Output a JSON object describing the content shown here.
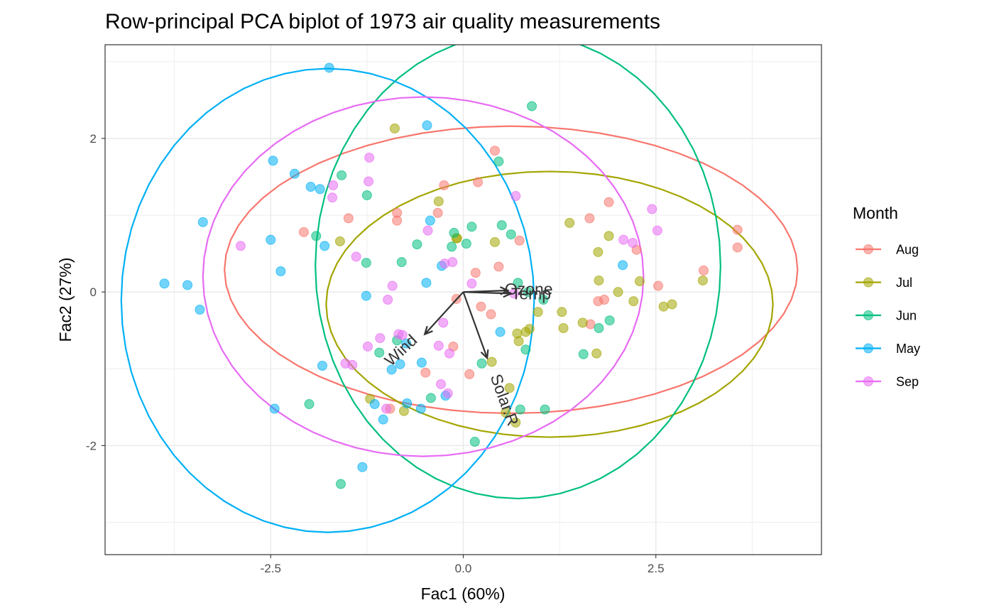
{
  "chart_data": {
    "type": "scatter",
    "title": "Row-principal PCA biplot of 1973 air quality measurements",
    "xlabel": "Fac1 (60%)",
    "ylabel": "Fac2 (27%)",
    "xlim": [
      -4.65,
      4.65
    ],
    "ylim": [
      -3.42,
      3.22
    ],
    "x_ticks": [
      -2.5,
      0,
      2.5
    ],
    "x_tick_labels": [
      "-2.5",
      "0.0",
      "2.5"
    ],
    "y_ticks": [
      -2,
      0,
      2
    ],
    "y_tick_labels": [
      "-2",
      "0",
      "2"
    ],
    "grid": true,
    "legend": {
      "title": "Month",
      "placement": "right"
    },
    "series": [
      {
        "name": "Aug",
        "color": "#F8766D",
        "ellipse": {
          "cx": 0.62,
          "cy": 0.29,
          "rx": 3.72,
          "ry": 1.87,
          "angle": 0
        },
        "points": [
          [
            0.41,
            1.84
          ],
          [
            0.19,
            1.43
          ],
          [
            -0.25,
            1.39
          ],
          [
            -1.49,
            0.96
          ],
          [
            -0.86,
            1.03
          ],
          [
            -0.33,
            1.03
          ],
          [
            -0.86,
            0.93
          ],
          [
            -2.07,
            0.78
          ],
          [
            0.73,
            0.67
          ],
          [
            0.46,
            0.33
          ],
          [
            0.16,
            0.25
          ],
          [
            -0.09,
            -0.09
          ],
          [
            0.23,
            -0.19
          ],
          [
            0.36,
            -0.29
          ],
          [
            -0.13,
            -0.71
          ],
          [
            -0.49,
            -1.05
          ],
          [
            0.08,
            -1.07
          ],
          [
            -0.95,
            -1.52
          ],
          [
            1.64,
            0.96
          ],
          [
            1.89,
            1.17
          ],
          [
            2.25,
            0.55
          ],
          [
            3.56,
            0.81
          ],
          [
            3.56,
            0.58
          ],
          [
            3.12,
            0.28
          ],
          [
            2.53,
            0.08
          ],
          [
            1.75,
            -0.12
          ],
          [
            1.83,
            -0.1
          ],
          [
            1.65,
            -0.42
          ]
        ]
      },
      {
        "name": "Jul",
        "color": "#A3A500",
        "ellipse": {
          "cx": 1.12,
          "cy": -0.16,
          "rx": 2.9,
          "ry": 1.73,
          "angle": 0
        },
        "points": [
          [
            -0.89,
            2.13
          ],
          [
            -0.32,
            1.18
          ],
          [
            -0.09,
            0.7
          ],
          [
            -0.08,
            0.7
          ],
          [
            -1.6,
            0.66
          ],
          [
            0.41,
            0.65
          ],
          [
            1.38,
            0.9
          ],
          [
            1.89,
            0.73
          ],
          [
            1.75,
            0.52
          ],
          [
            2.29,
            0.14
          ],
          [
            1.76,
            0.15
          ],
          [
            2.01,
            0.0
          ],
          [
            2.21,
            -0.12
          ],
          [
            2.6,
            -0.19
          ],
          [
            2.71,
            -0.16
          ],
          [
            3.11,
            0.15
          ],
          [
            1.28,
            -0.26
          ],
          [
            0.97,
            -0.26
          ],
          [
            1.55,
            -0.4
          ],
          [
            1.3,
            -0.47
          ],
          [
            0.86,
            -0.48
          ],
          [
            0.7,
            -0.54
          ],
          [
            0.81,
            -0.52
          ],
          [
            0.72,
            -0.64
          ],
          [
            0.37,
            -0.91
          ],
          [
            0.6,
            -1.25
          ],
          [
            1.73,
            -0.8
          ],
          [
            -1.21,
            -1.39
          ],
          [
            0.68,
            -1.7
          ],
          [
            0.55,
            -1.57
          ],
          [
            -0.77,
            -1.55
          ]
        ]
      },
      {
        "name": "Jun",
        "color": "#00BF7D",
        "ellipse": {
          "cx": 0.71,
          "cy": 0.34,
          "rx": 2.63,
          "ry": 3.03,
          "angle": 0
        },
        "points": [
          [
            0.89,
            2.42
          ],
          [
            0.46,
            1.7
          ],
          [
            -1.58,
            1.52
          ],
          [
            -1.25,
            1.26
          ],
          [
            0.5,
            0.87
          ],
          [
            0.11,
            0.85
          ],
          [
            -0.12,
            0.77
          ],
          [
            0.62,
            0.75
          ],
          [
            -1.91,
            0.73
          ],
          [
            0.04,
            0.63
          ],
          [
            -0.15,
            0.59
          ],
          [
            -0.6,
            0.62
          ],
          [
            -0.8,
            0.39
          ],
          [
            -1.26,
            0.38
          ],
          [
            0.71,
            0.12
          ],
          [
            0.84,
            0.0
          ],
          [
            1.04,
            -0.1
          ],
          [
            1.76,
            -0.47
          ],
          [
            1.9,
            -0.37
          ],
          [
            0.81,
            -0.75
          ],
          [
            1.56,
            -0.81
          ],
          [
            -1.09,
            -0.79
          ],
          [
            0.24,
            -0.93
          ],
          [
            -0.42,
            -1.38
          ],
          [
            0.74,
            -1.53
          ],
          [
            1.06,
            -1.53
          ],
          [
            -2.0,
            -1.46
          ],
          [
            0.15,
            -1.95
          ],
          [
            -1.59,
            -2.5
          ],
          [
            -0.86,
            -0.63
          ]
        ]
      },
      {
        "name": "May",
        "color": "#00B0F6",
        "ellipse": {
          "cx": -1.76,
          "cy": -0.11,
          "rx": 2.68,
          "ry": 3.02,
          "angle": 0
        },
        "points": [
          [
            -1.74,
            2.92
          ],
          [
            -0.47,
            2.17
          ],
          [
            -2.47,
            1.71
          ],
          [
            -2.19,
            1.54
          ],
          [
            -1.98,
            1.37
          ],
          [
            -1.86,
            1.34
          ],
          [
            -3.38,
            0.91
          ],
          [
            -0.43,
            0.93
          ],
          [
            -2.5,
            0.68
          ],
          [
            -1.8,
            0.6
          ],
          [
            -0.28,
            0.34
          ],
          [
            2.07,
            0.35
          ],
          [
            -2.37,
            0.27
          ],
          [
            -0.48,
            0.12
          ],
          [
            -3.88,
            0.11
          ],
          [
            -3.58,
            0.09
          ],
          [
            -3.42,
            -0.23
          ],
          [
            -1.26,
            -0.05
          ],
          [
            0.48,
            -0.52
          ],
          [
            -0.74,
            -0.67
          ],
          [
            -0.82,
            -0.94
          ],
          [
            -0.54,
            -0.92
          ],
          [
            -0.93,
            -1.01
          ],
          [
            -1.83,
            -0.96
          ],
          [
            -2.45,
            -1.52
          ],
          [
            -0.73,
            -1.45
          ],
          [
            -0.55,
            -1.52
          ],
          [
            -1.15,
            -1.46
          ],
          [
            -1.04,
            -1.66
          ],
          [
            -1.31,
            -2.28
          ],
          [
            -0.23,
            -1.35
          ]
        ]
      },
      {
        "name": "Sep",
        "color": "#E76BF3",
        "ellipse": {
          "cx": -0.52,
          "cy": 0.2,
          "rx": 2.86,
          "ry": 2.34,
          "angle": 0
        },
        "points": [
          [
            -1.22,
            1.75
          ],
          [
            -1.23,
            1.44
          ],
          [
            -1.69,
            1.39
          ],
          [
            -1.7,
            1.23
          ],
          [
            0.68,
            1.25
          ],
          [
            2.45,
            1.08
          ],
          [
            2.52,
            0.8
          ],
          [
            2.08,
            0.68
          ],
          [
            -0.46,
            0.8
          ],
          [
            -2.89,
            0.6
          ],
          [
            2.2,
            0.64
          ],
          [
            -1.39,
            0.46
          ],
          [
            -0.24,
            0.37
          ],
          [
            -0.14,
            0.39
          ],
          [
            0.11,
            0.11
          ],
          [
            -0.92,
            0.08
          ],
          [
            -0.98,
            -0.1
          ],
          [
            0.66,
            -0.02
          ],
          [
            -0.26,
            -0.4
          ],
          [
            -1.08,
            -0.6
          ],
          [
            -0.79,
            -0.56
          ],
          [
            -0.32,
            -0.7
          ],
          [
            -0.18,
            -0.8
          ],
          [
            -1.24,
            -0.71
          ],
          [
            -1.53,
            -0.93
          ],
          [
            -1.44,
            -0.95
          ],
          [
            -0.29,
            -1.2
          ],
          [
            -0.2,
            -1.32
          ],
          [
            -1.0,
            -1.52
          ],
          [
            -0.84,
            -0.55
          ]
        ]
      }
    ],
    "loadings": [
      {
        "label": "Ozone",
        "x": 0.58,
        "y": 0.02,
        "label_x": 0.85,
        "label_y": 0.02,
        "label_rotation": 0
      },
      {
        "label": "Temp",
        "x": 0.62,
        "y": -0.02,
        "label_x": 0.88,
        "label_y": -0.04,
        "label_rotation": 0
      },
      {
        "label": "Wind",
        "x": -0.5,
        "y": -0.55,
        "label_x": -0.8,
        "label_y": -0.77,
        "label_rotation": -43
      },
      {
        "label": "Solar.R",
        "x": 0.31,
        "y": -0.86,
        "label_x": 0.52,
        "label_y": -1.41,
        "label_rotation": 70
      }
    ]
  }
}
